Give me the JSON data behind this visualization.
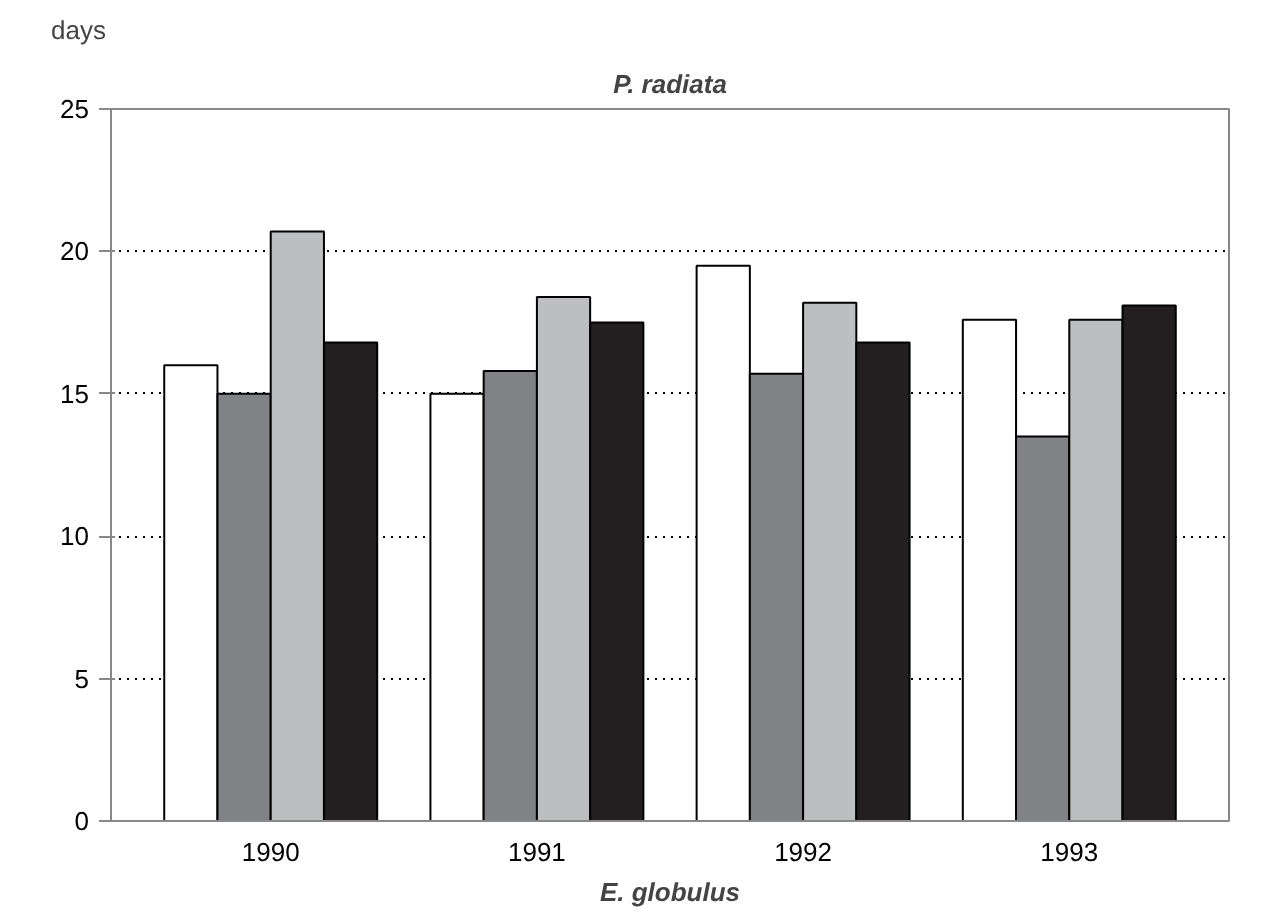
{
  "chart_data": {
    "type": "bar",
    "title": "P. radiata",
    "xlabel": "E. globulus",
    "ylabel": "days",
    "categories": [
      "1990",
      "1991",
      "1992",
      "1993"
    ],
    "series": [
      {
        "color": "#ffffff",
        "values": [
          16.0,
          15.0,
          19.5,
          17.6
        ]
      },
      {
        "color": "#808285",
        "values": [
          15.0,
          15.8,
          15.7,
          13.5
        ]
      },
      {
        "color": "#bcbec0",
        "values": [
          20.7,
          18.4,
          18.2,
          17.6
        ]
      },
      {
        "color": "#231f20",
        "values": [
          16.8,
          17.5,
          16.8,
          18.1
        ]
      }
    ],
    "ylim": [
      0,
      25
    ],
    "yticks": [
      0,
      5,
      10,
      15,
      20,
      25
    ],
    "grid": "y"
  }
}
